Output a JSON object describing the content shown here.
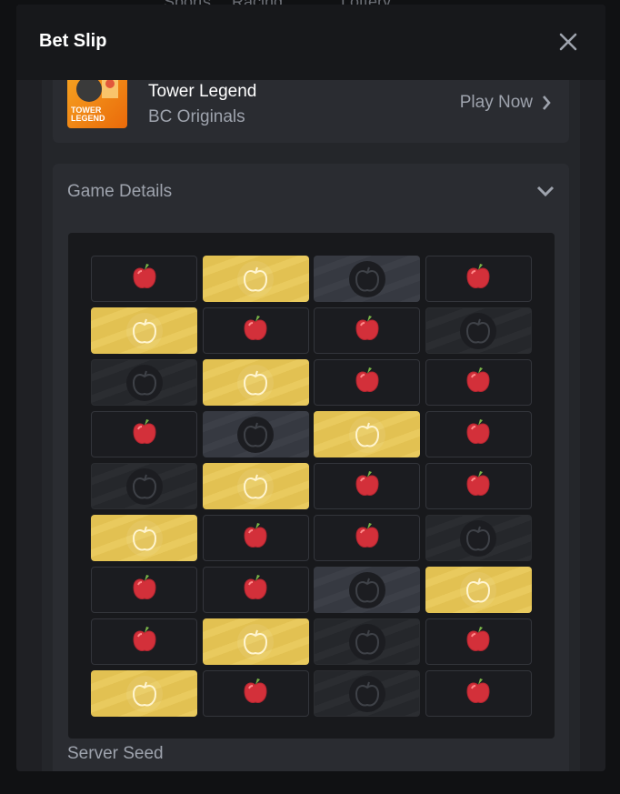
{
  "background_nav": [
    "Sports",
    "Racing",
    "Lottery"
  ],
  "modal": {
    "title": "Bet Slip"
  },
  "game": {
    "name": "Tower Legend",
    "provider": "BC Originals",
    "thumb_text": "TOWER LEGEND",
    "play_label": "Play Now"
  },
  "details": {
    "title": "Game Details",
    "expanded": true,
    "next_section": "Server Seed"
  },
  "grid": {
    "legend": {
      "R": "red apple (unrevealed safe)",
      "G": "gold apple (picked)",
      "D": "dark apple (bad)",
      "L": "dark apple highlighted"
    },
    "rows": [
      [
        "R",
        "G",
        "L",
        "R"
      ],
      [
        "G",
        "R",
        "R",
        "D"
      ],
      [
        "D",
        "G",
        "R",
        "R"
      ],
      [
        "R",
        "L",
        "G",
        "R"
      ],
      [
        "D",
        "G",
        "R",
        "R"
      ],
      [
        "G",
        "R",
        "R",
        "D"
      ],
      [
        "R",
        "R",
        "L",
        "G"
      ],
      [
        "R",
        "G",
        "D",
        "R"
      ],
      [
        "G",
        "R",
        "D",
        "R"
      ]
    ]
  },
  "colors": {
    "gold": "#e2c152",
    "red_apple": "#d3303a",
    "modal_bg": "#1f2024"
  }
}
